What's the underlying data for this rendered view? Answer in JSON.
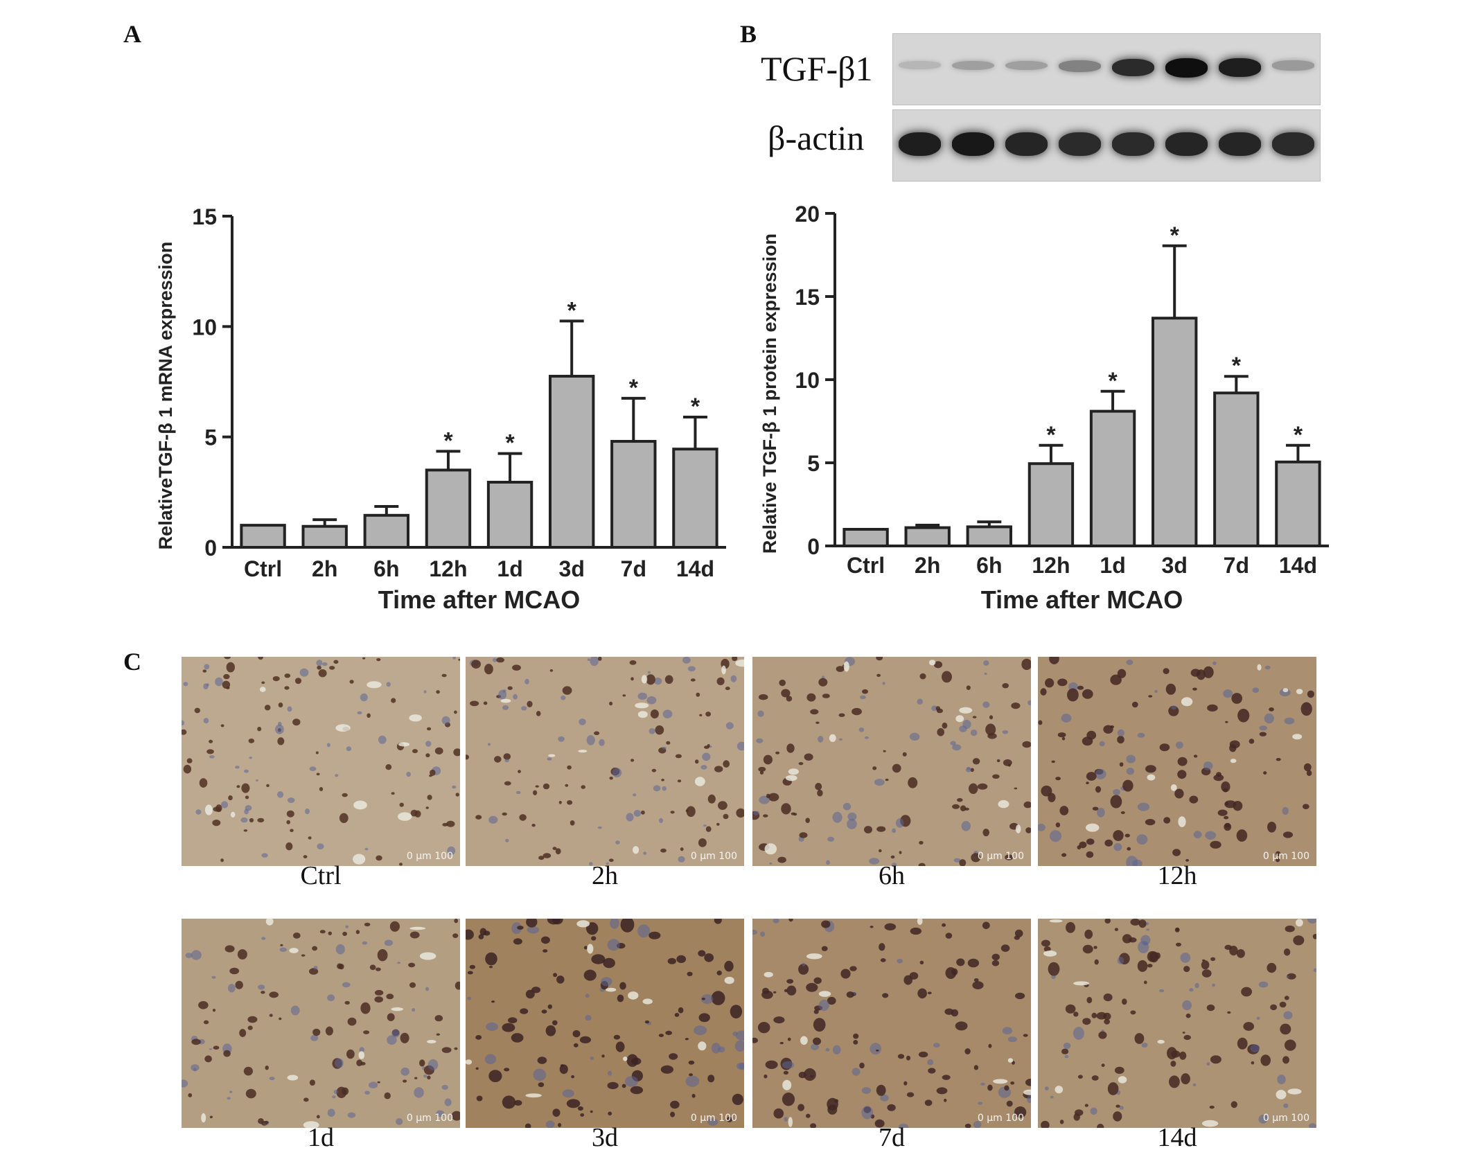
{
  "panels": {
    "a": "A",
    "b": "B",
    "c": "C"
  },
  "blot": {
    "rows": [
      "TGF-β1",
      "β-actin"
    ],
    "tgf_intensity": [
      0.1,
      0.22,
      0.22,
      0.38,
      0.85,
      1.0,
      0.92,
      0.25
    ],
    "actin_intensity": [
      0.92,
      0.95,
      0.88,
      0.85,
      0.85,
      0.88,
      0.88,
      0.85
    ]
  },
  "chart_data": [
    {
      "type": "bar",
      "panel": "A",
      "categories": [
        "Ctrl",
        "2h",
        "6h",
        "12h",
        "1d",
        "3d",
        "7d",
        "14d"
      ],
      "values": [
        1.0,
        0.95,
        1.45,
        3.5,
        2.95,
        7.75,
        4.8,
        4.45
      ],
      "errors": [
        0.0,
        0.3,
        0.4,
        0.85,
        1.3,
        2.5,
        1.95,
        1.45
      ],
      "significant": [
        false,
        false,
        false,
        true,
        true,
        true,
        true,
        true
      ],
      "marker": "*",
      "xlabel": "Time after MCAO",
      "ylabel": "RelativeTGF-β 1 mRNA expression",
      "ylim": [
        0,
        15
      ],
      "yticks": [
        0,
        5,
        10,
        15
      ],
      "grid": false,
      "bar_color": "#b2b2b2"
    },
    {
      "type": "bar",
      "panel": "B",
      "categories": [
        "Ctrl",
        "2h",
        "6h",
        "12h",
        "1d",
        "3d",
        "7d",
        "14d"
      ],
      "values": [
        1.0,
        1.1,
        1.15,
        4.95,
        8.1,
        13.7,
        9.2,
        5.05
      ],
      "errors": [
        0.0,
        0.15,
        0.3,
        1.1,
        1.2,
        4.35,
        1.0,
        1.0
      ],
      "significant": [
        false,
        false,
        false,
        true,
        true,
        true,
        true,
        true
      ],
      "marker": "*",
      "xlabel": "Time after MCAO",
      "ylabel": "Relative TGF-β 1 protein  expression",
      "ylim": [
        0,
        20
      ],
      "yticks": [
        0,
        5,
        10,
        15,
        20
      ],
      "grid": false,
      "bar_color": "#b2b2b2"
    }
  ],
  "micrographs": [
    {
      "label": "Ctrl",
      "scale": "0   μm  100",
      "stain": 0.3
    },
    {
      "label": "2h",
      "scale": "0   μm  100",
      "stain": 0.4
    },
    {
      "label": "6h",
      "scale": "0   μm  100",
      "stain": 0.55
    },
    {
      "label": "12h",
      "scale": "0   μm  100",
      "stain": 0.75
    },
    {
      "label": "1d",
      "scale": "0   μm  100",
      "stain": 0.5
    },
    {
      "label": "3d",
      "scale": "0   μm  100",
      "stain": 1.0
    },
    {
      "label": "7d",
      "scale": "0   μm  100",
      "stain": 0.85
    },
    {
      "label": "14d",
      "scale": "0   μm  100",
      "stain": 0.7
    }
  ]
}
